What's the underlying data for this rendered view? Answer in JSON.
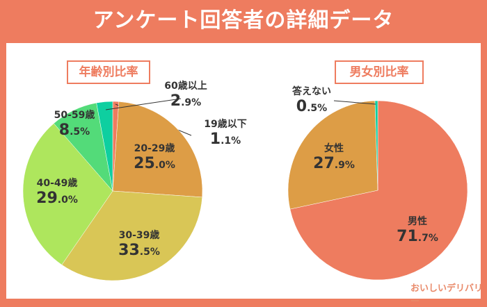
{
  "title": "アンケート回答者の詳細データ",
  "logo_text": "おいしいデリバリー",
  "chart_data": [
    {
      "type": "pie",
      "title": "年齢別比率",
      "unit": "%",
      "start": "top, clockwise",
      "slices": [
        {
          "label": "19歳以下",
          "value": 1.1,
          "int": "1",
          "dec": ".1%",
          "color": "#EE7C5F"
        },
        {
          "label": "20-29歳",
          "value": 25.0,
          "int": "25",
          "dec": ".0%",
          "color": "#DD9D46"
        },
        {
          "label": "30-39歳",
          "value": 33.5,
          "int": "33",
          "dec": ".5%",
          "color": "#D9C656"
        },
        {
          "label": "40-49歳",
          "value": 29.0,
          "int": "29",
          "dec": ".0%",
          "color": "#AEE65D"
        },
        {
          "label": "50-59歳",
          "value": 8.5,
          "int": "8",
          "dec": ".5%",
          "color": "#53DB79"
        },
        {
          "label": "60歳以上",
          "value": 2.9,
          "int": "2",
          "dec": ".9%",
          "color": "#0ECFA0"
        }
      ]
    },
    {
      "type": "pie",
      "title": "男女別比率",
      "unit": "%",
      "start": "top, clockwise",
      "slices": [
        {
          "label": "男性",
          "value": 71.7,
          "int": "71",
          "dec": ".7%",
          "color": "#EE7C5F"
        },
        {
          "label": "女性",
          "value": 27.9,
          "int": "27",
          "dec": ".9%",
          "color": "#DD9D46"
        },
        {
          "label": "答えない",
          "value": 0.5,
          "int": "0",
          "dec": ".5%",
          "color": "#0ECFA0"
        }
      ]
    }
  ]
}
